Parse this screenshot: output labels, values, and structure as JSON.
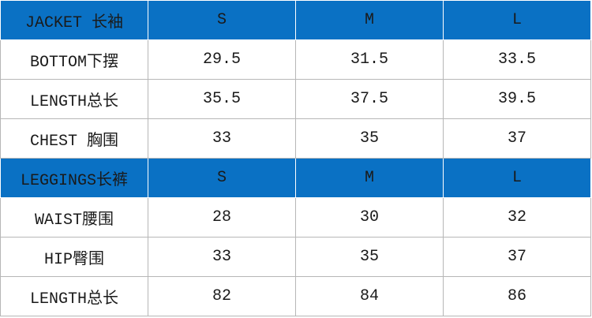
{
  "table": {
    "sections": [
      {
        "header": [
          "JACKET 长袖",
          "S",
          "M",
          "L"
        ],
        "rows": [
          [
            "BOTTOM下摆",
            "29.5",
            "31.5",
            "33.5"
          ],
          [
            "LENGTH总长",
            "35.5",
            "37.5",
            "39.5"
          ],
          [
            "CHEST 胸围",
            "33",
            "35",
            "37"
          ]
        ]
      },
      {
        "header": [
          "LEGGINGS长裤",
          "S",
          "M",
          "L"
        ],
        "rows": [
          [
            "WAIST腰围",
            "28",
            "30",
            "32"
          ],
          [
            "HIP臀围",
            "33",
            "35",
            "37"
          ],
          [
            "LENGTH总长",
            "82",
            "84",
            "86"
          ]
        ]
      }
    ]
  }
}
